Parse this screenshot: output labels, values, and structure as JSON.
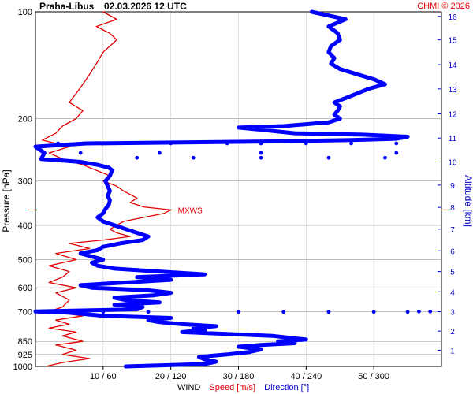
{
  "header": {
    "station": "Praha-Libus",
    "datetime": "02.03.2026 12 UTC",
    "copyright": "CHMI © 2026"
  },
  "axes": {
    "left_label": "Pressure [hPa]",
    "right_label": "Altitude [km]",
    "bottom_label_parts": [
      {
        "text": "WIND",
        "color": "#000000"
      },
      {
        "text": "Speed [m/s]",
        "color": "#e00000"
      },
      {
        "text": "Direction [°]",
        "color": "#0000cc"
      }
    ]
  },
  "colors": {
    "speed": "#e00000",
    "direction": "#0000ff",
    "grid": "#999999",
    "right_axis": "#0000cc"
  },
  "chart_data": {
    "type": "line",
    "title": "Praha-Libus 02.03.2026 12 UTC",
    "y_axis": {
      "label": "Pressure [hPa]",
      "scale": "log",
      "range": [
        1000,
        100
      ],
      "ticks": [
        100,
        200,
        300,
        400,
        500,
        600,
        700,
        850,
        925,
        1000
      ]
    },
    "x_axis": {
      "label": "WIND Speed [m/s] Direction [°]",
      "speed_range": [
        0,
        60
      ],
      "direction_range": [
        0,
        360
      ],
      "ticks": [
        {
          "speed": 10,
          "direction": 60,
          "label": "10 / 60"
        },
        {
          "speed": 20,
          "direction": 120,
          "label": "20 / 120"
        },
        {
          "speed": 30,
          "direction": 180,
          "label": "30 / 180"
        },
        {
          "speed": 40,
          "direction": 240,
          "label": "40 / 240"
        },
        {
          "speed": 50,
          "direction": 300,
          "label": "50 / 300"
        }
      ]
    },
    "right_axis": {
      "label": "Altitude [km]",
      "ticks": [
        {
          "km": 1,
          "hPa": 900
        },
        {
          "km": 2,
          "hPa": 795
        },
        {
          "km": 3,
          "hPa": 701
        },
        {
          "km": 4,
          "hPa": 616
        },
        {
          "km": 5,
          "hPa": 540
        },
        {
          "km": 6,
          "hPa": 472
        },
        {
          "km": 7,
          "hPa": 410
        },
        {
          "km": 8,
          "hPa": 356
        },
        {
          "km": 9,
          "hPa": 308
        },
        {
          "km": 10,
          "hPa": 265
        },
        {
          "km": 11,
          "hPa": 227
        },
        {
          "km": 12,
          "hPa": 194
        },
        {
          "km": 13,
          "hPa": 165
        },
        {
          "km": 14,
          "hPa": 141
        },
        {
          "km": 15,
          "hPa": 120
        },
        {
          "km": 16,
          "hPa": 103
        }
      ]
    },
    "annotation": {
      "text": "MXWS",
      "hPa": 362,
      "speed": 20
    },
    "series": [
      {
        "name": "Speed [m/s]",
        "axis": "speed",
        "points": [
          [
            1000,
            1.5
          ],
          [
            975,
            4
          ],
          [
            950,
            8
          ],
          [
            925,
            4
          ],
          [
            900,
            6
          ],
          [
            870,
            3
          ],
          [
            850,
            7
          ],
          [
            820,
            4
          ],
          [
            800,
            6
          ],
          [
            780,
            2
          ],
          [
            760,
            5
          ],
          [
            740,
            3
          ],
          [
            720,
            7
          ],
          [
            700,
            2
          ],
          [
            680,
            4
          ],
          [
            650,
            5
          ],
          [
            620,
            3
          ],
          [
            600,
            6
          ],
          [
            580,
            2
          ],
          [
            560,
            4
          ],
          [
            540,
            5
          ],
          [
            520,
            2
          ],
          [
            500,
            6
          ],
          [
            480,
            3
          ],
          [
            465,
            8
          ],
          [
            450,
            5
          ],
          [
            440,
            10
          ],
          [
            430,
            14
          ],
          [
            420,
            12
          ],
          [
            410,
            11
          ],
          [
            400,
            12
          ],
          [
            390,
            13
          ],
          [
            380,
            16
          ],
          [
            370,
            19
          ],
          [
            362,
            20
          ],
          [
            355,
            16
          ],
          [
            345,
            14
          ],
          [
            335,
            15
          ],
          [
            320,
            13
          ],
          [
            310,
            12
          ],
          [
            300,
            10
          ],
          [
            290,
            11
          ],
          [
            280,
            9
          ],
          [
            270,
            7
          ],
          [
            260,
            4
          ],
          [
            250,
            2
          ],
          [
            240,
            5
          ],
          [
            230,
            1
          ],
          [
            220,
            3
          ],
          [
            210,
            4
          ],
          [
            200,
            6
          ],
          [
            190,
            7
          ],
          [
            180,
            5
          ],
          [
            170,
            6
          ],
          [
            160,
            7
          ],
          [
            150,
            8
          ],
          [
            140,
            9
          ],
          [
            130,
            10
          ],
          [
            120,
            12
          ],
          [
            115,
            11
          ],
          [
            110,
            9
          ],
          [
            105,
            12
          ],
          [
            100,
            10
          ]
        ]
      },
      {
        "name": "Direction [°]",
        "axis": "direction",
        "points": [
          [
            1000,
            80
          ],
          [
            985,
            150
          ],
          [
            970,
            160
          ],
          [
            955,
            150
          ],
          [
            940,
            145
          ],
          [
            925,
            170
          ],
          [
            910,
            190
          ],
          [
            895,
            200
          ],
          [
            880,
            180
          ],
          [
            870,
            200
          ],
          [
            860,
            230
          ],
          [
            850,
            215
          ],
          [
            840,
            240
          ],
          [
            830,
            225
          ],
          [
            820,
            210
          ],
          [
            800,
            130
          ],
          [
            790,
            150
          ],
          [
            780,
            140
          ],
          [
            770,
            160
          ],
          [
            760,
            130
          ],
          [
            750,
            110
          ],
          [
            740,
            100
          ],
          [
            730,
            120
          ],
          [
            720,
            60
          ],
          [
            705,
            30
          ],
          [
            700,
            0
          ],
          [
            690,
            90
          ],
          [
            680,
            95
          ],
          [
            670,
            70
          ],
          [
            660,
            110
          ],
          [
            650,
            80
          ],
          [
            640,
            70
          ],
          [
            630,
            105
          ],
          [
            620,
            120
          ],
          [
            610,
            100
          ],
          [
            600,
            50
          ],
          [
            590,
            40
          ],
          [
            580,
            80
          ],
          [
            570,
            120
          ],
          [
            560,
            90
          ],
          [
            550,
            150
          ],
          [
            540,
            110
          ],
          [
            530,
            70
          ],
          [
            520,
            55
          ],
          [
            510,
            50
          ],
          [
            500,
            60
          ],
          [
            490,
            50
          ],
          [
            480,
            40
          ],
          [
            470,
            55
          ],
          [
            460,
            60
          ],
          [
            450,
            75
          ],
          [
            440,
            95
          ],
          [
            430,
            100
          ],
          [
            420,
            90
          ],
          [
            410,
            80
          ],
          [
            400,
            70
          ],
          [
            390,
            60
          ],
          [
            380,
            55
          ],
          [
            370,
            60
          ],
          [
            360,
            62
          ],
          [
            350,
            65
          ],
          [
            340,
            66
          ],
          [
            330,
            64
          ],
          [
            320,
            66
          ],
          [
            310,
            64
          ],
          [
            300,
            62
          ],
          [
            290,
            66
          ],
          [
            280,
            68
          ],
          [
            275,
            65
          ],
          [
            270,
            55
          ],
          [
            265,
            40
          ],
          [
            262,
            20
          ],
          [
            260,
            5
          ],
          [
            250,
            8
          ],
          [
            240,
            0
          ],
          [
            235,
            45
          ],
          [
            232,
            210
          ],
          [
            230,
            280
          ],
          [
            228,
            320
          ],
          [
            225,
            330
          ],
          [
            222,
            290
          ],
          [
            220,
            230
          ],
          [
            215,
            200
          ],
          [
            212,
            180
          ],
          [
            210,
            220
          ],
          [
            205,
            260
          ],
          [
            200,
            270
          ],
          [
            195,
            265
          ],
          [
            190,
            268
          ],
          [
            185,
            270
          ],
          [
            180,
            265
          ],
          [
            175,
            275
          ],
          [
            170,
            285
          ],
          [
            165,
            295
          ],
          [
            160,
            310
          ],
          [
            155,
            300
          ],
          [
            150,
            285
          ],
          [
            145,
            270
          ],
          [
            140,
            262
          ],
          [
            135,
            265
          ],
          [
            130,
            260
          ],
          [
            125,
            262
          ],
          [
            120,
            270
          ],
          [
            115,
            268
          ],
          [
            110,
            260
          ],
          [
            105,
            275
          ],
          [
            100,
            245
          ]
        ]
      },
      {
        "name": "Direction outliers",
        "axis": "direction",
        "style": "dots",
        "points": [
          [
            250,
            40
          ],
          [
            250,
            110
          ],
          [
            250,
            200
          ],
          [
            250,
            320
          ],
          [
            235,
            20
          ],
          [
            235,
            60
          ],
          [
            235,
            120
          ],
          [
            235,
            170
          ],
          [
            235,
            200
          ],
          [
            235,
            240
          ],
          [
            235,
            280
          ],
          [
            235,
            320
          ],
          [
            258,
            90
          ],
          [
            258,
            140
          ],
          [
            258,
            200
          ],
          [
            258,
            260
          ],
          [
            258,
            310
          ],
          [
            702,
            60
          ],
          [
            702,
            100
          ],
          [
            702,
            180
          ],
          [
            702,
            220
          ],
          [
            702,
            260
          ],
          [
            702,
            300
          ],
          [
            702,
            330
          ],
          [
            700,
            340
          ],
          [
            700,
            350
          ]
        ]
      }
    ],
    "grid": true,
    "legend": "bottom"
  }
}
